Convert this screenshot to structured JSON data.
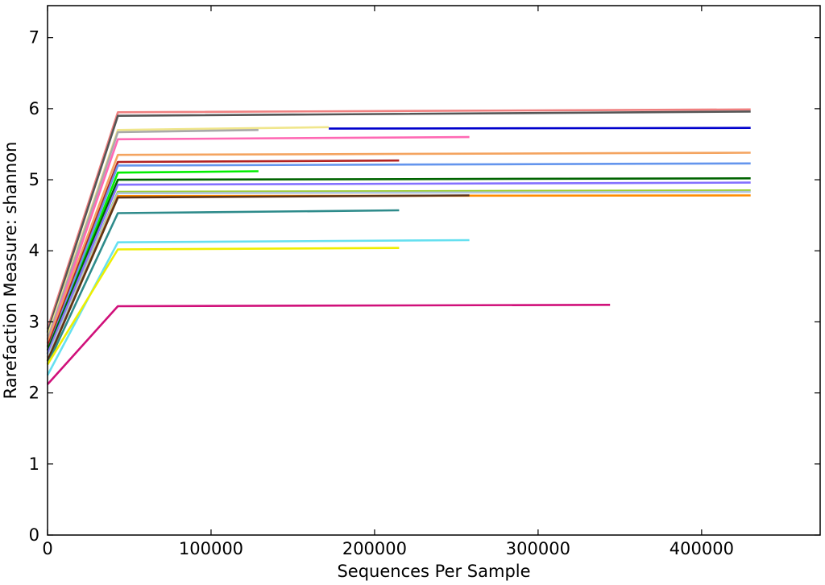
{
  "chart_data": {
    "type": "line",
    "title": "",
    "xlabel": "Sequences Per Sample",
    "ylabel": "Rarefaction Measure: shannon",
    "xlim": [
      0,
      472500
    ],
    "ylim": [
      0,
      7.45
    ],
    "xticks": [
      0,
      100000,
      200000,
      300000,
      400000
    ],
    "xtick_labels": [
      "0",
      "100000",
      "200000",
      "300000",
      "400000"
    ],
    "yticks": [
      0,
      1,
      2,
      3,
      4,
      5,
      6,
      7
    ],
    "ytick_labels": [
      "0",
      "1",
      "2",
      "3",
      "4",
      "5",
      "6",
      "7"
    ],
    "grid": false,
    "legend": "none",
    "series": [
      {
        "color": "#f08080",
        "x": [
          0,
          43000,
          430000
        ],
        "y": [
          2.9,
          5.95,
          5.99
        ]
      },
      {
        "color": "#555555",
        "x": [
          0,
          43000,
          430000
        ],
        "y": [
          2.85,
          5.9,
          5.96
        ]
      },
      {
        "color": "#f0e68c",
        "x": [
          0,
          43000,
          172000
        ],
        "y": [
          2.8,
          5.7,
          5.74
        ]
      },
      {
        "color": "#0000cd",
        "x": [
          172000,
          430000
        ],
        "y": [
          5.72,
          5.73
        ]
      },
      {
        "color": "#a9a9a9",
        "x": [
          0,
          43000,
          129000
        ],
        "y": [
          2.75,
          5.67,
          5.7
        ]
      },
      {
        "color": "#ff69b4",
        "x": [
          0,
          43000,
          258000
        ],
        "y": [
          2.7,
          5.57,
          5.6
        ]
      },
      {
        "color": "#f4a460",
        "x": [
          0,
          43000,
          430000
        ],
        "y": [
          2.7,
          5.35,
          5.38
        ]
      },
      {
        "color": "#b22222",
        "x": [
          0,
          43000,
          215000
        ],
        "y": [
          2.65,
          5.25,
          5.27
        ]
      },
      {
        "color": "#6495ed",
        "x": [
          0,
          43000,
          430000
        ],
        "y": [
          2.6,
          5.2,
          5.23
        ]
      },
      {
        "color": "#00ee00",
        "x": [
          0,
          43000,
          129000
        ],
        "y": [
          2.55,
          5.1,
          5.12
        ]
      },
      {
        "color": "#006400",
        "x": [
          0,
          43000,
          430000
        ],
        "y": [
          2.6,
          5.0,
          5.02
        ]
      },
      {
        "color": "#8470ff",
        "x": [
          0,
          43000,
          430000
        ],
        "y": [
          2.55,
          4.93,
          4.96
        ]
      },
      {
        "color": "#9acd32",
        "x": [
          0,
          43000,
          430000
        ],
        "y": [
          2.5,
          4.83,
          4.85
        ]
      },
      {
        "color": "#b0c4de",
        "x": [
          0,
          43000,
          430000
        ],
        "y": [
          2.5,
          4.81,
          4.83
        ]
      },
      {
        "color": "#ff8c00",
        "x": [
          0,
          43000,
          430000
        ],
        "y": [
          2.45,
          4.77,
          4.78
        ]
      },
      {
        "color": "#5c3317",
        "x": [
          0,
          43000,
          258000
        ],
        "y": [
          2.45,
          4.75,
          4.78
        ]
      },
      {
        "color": "#2e8b8b",
        "x": [
          0,
          43000,
          215000
        ],
        "y": [
          2.4,
          4.53,
          4.57
        ]
      },
      {
        "color": "#66e0f0",
        "x": [
          0,
          43000,
          258000
        ],
        "y": [
          2.25,
          4.12,
          4.15
        ]
      },
      {
        "color": "#eeee00",
        "x": [
          0,
          43000,
          215000
        ],
        "y": [
          2.4,
          4.02,
          4.04
        ]
      },
      {
        "color": "#d0107a",
        "x": [
          0,
          43000,
          344000
        ],
        "y": [
          2.12,
          3.22,
          3.24
        ]
      }
    ]
  }
}
